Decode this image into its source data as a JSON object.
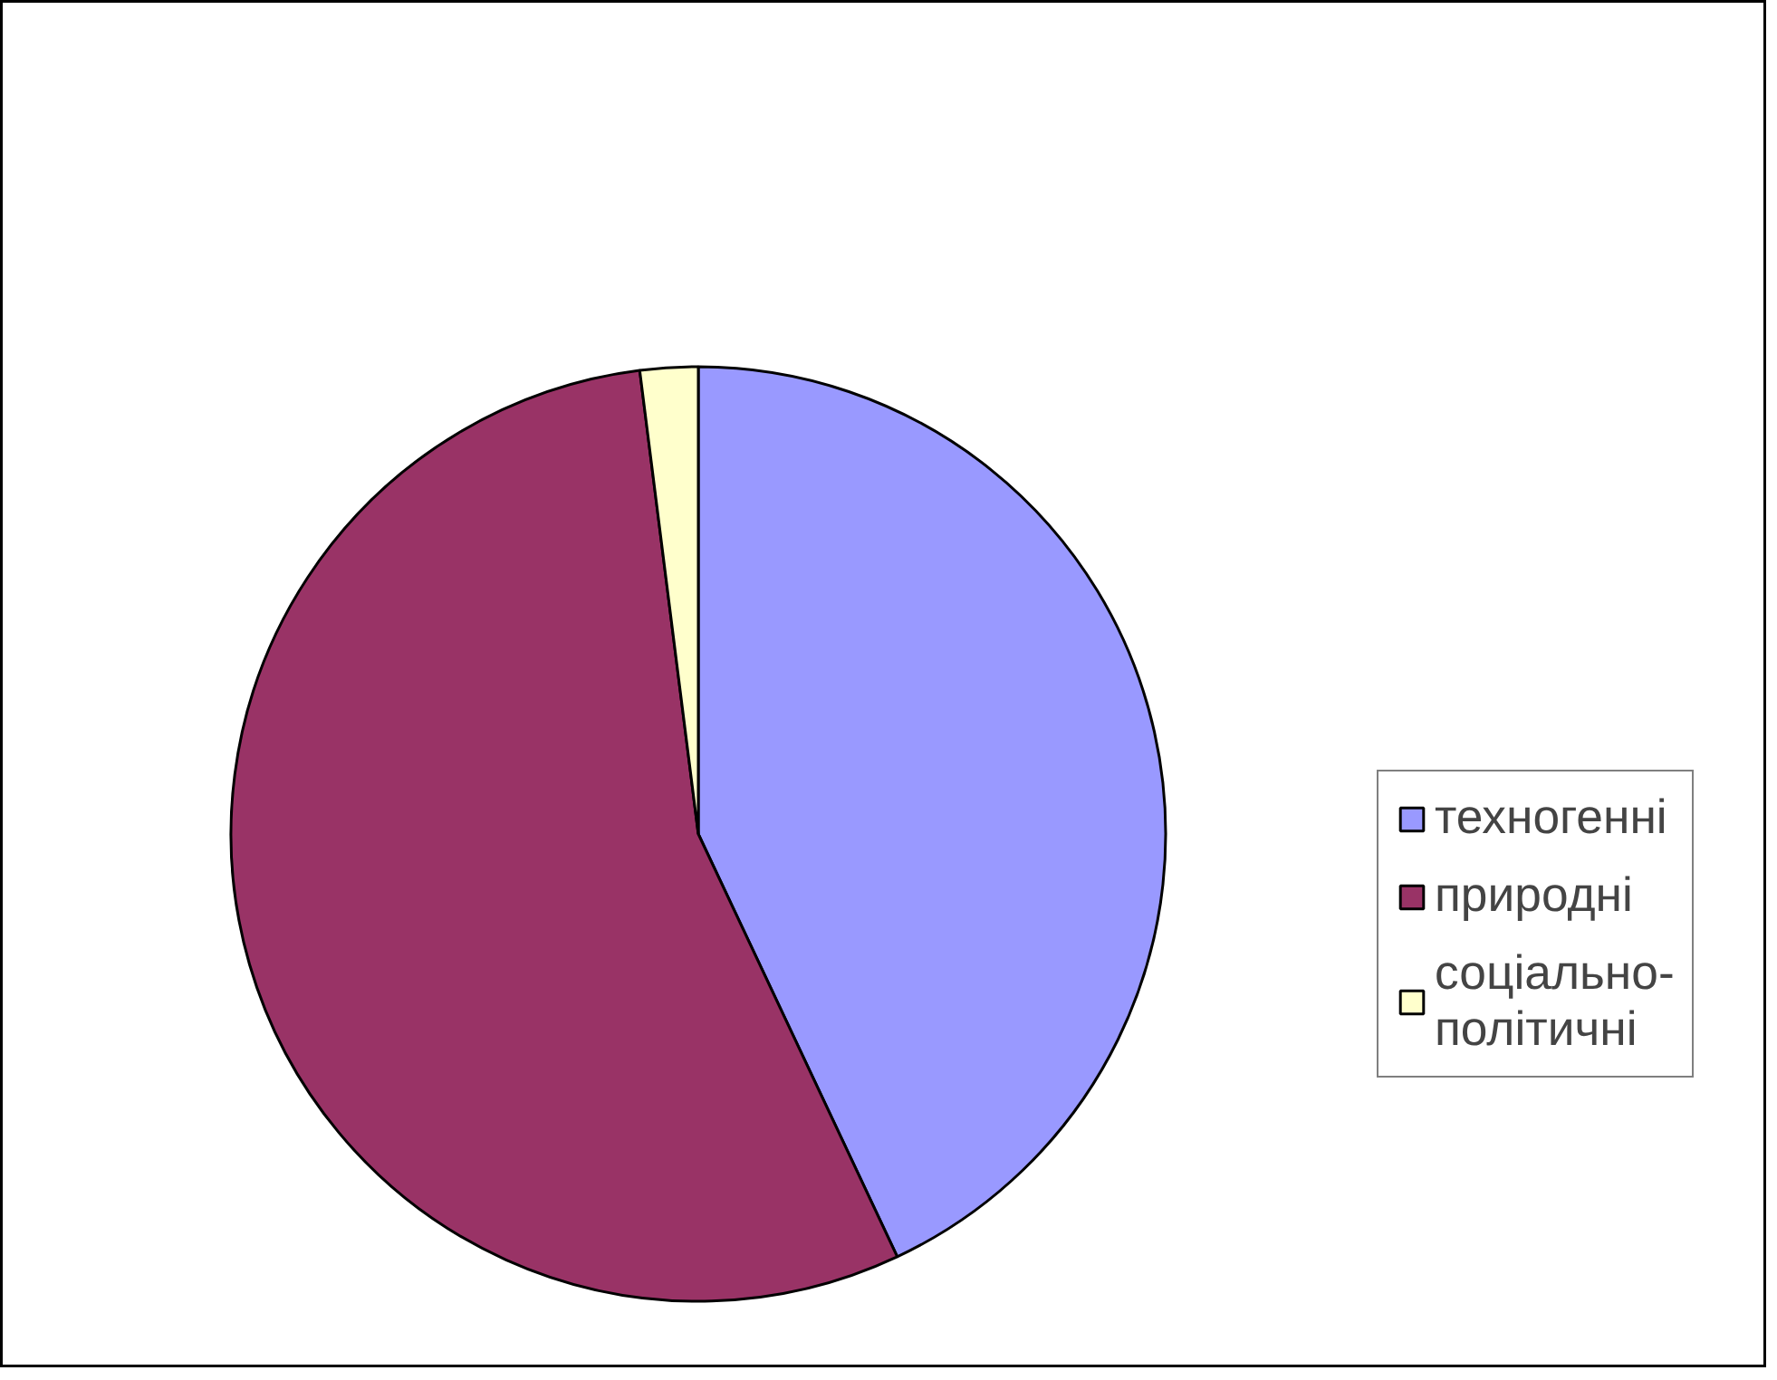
{
  "chart_data": {
    "type": "pie",
    "categories": [
      "техногенні",
      "природні",
      "соціально-політичні"
    ],
    "values": [
      43,
      55,
      2
    ],
    "colors": [
      "#9999ff",
      "#993366",
      "#ffffcc"
    ],
    "legend": "right"
  }
}
